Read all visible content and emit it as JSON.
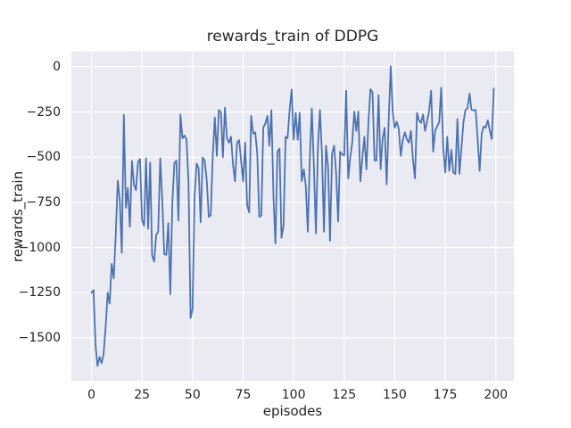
{
  "chart_data": {
    "type": "line",
    "title": "rewards_train of DDPG",
    "xlabel": "episodes",
    "ylabel": "rewards_train",
    "x_ticks": [
      0,
      25,
      50,
      75,
      100,
      125,
      150,
      175,
      200
    ],
    "y_ticks": [
      0,
      -250,
      -500,
      -750,
      -1000,
      -1250,
      -1500
    ],
    "xlim": [
      -9.95,
      208.95
    ],
    "ylim": [
      -1738,
      86
    ],
    "grid": true,
    "legend": false,
    "line_color": "#4c72b0",
    "plot_bg": "#eaeaf2",
    "grid_color": "#ffffff",
    "text_color": "#262626",
    "series": [
      {
        "name": "rewards_train",
        "x_start": 0,
        "x_step": 1,
        "values": [
          -1250,
          -1235,
          -1540,
          -1655,
          -1605,
          -1640,
          -1590,
          -1440,
          -1250,
          -1310,
          -1090,
          -1170,
          -930,
          -630,
          -740,
          -1030,
          -265,
          -780,
          -670,
          -885,
          -520,
          -650,
          -682,
          -526,
          -510,
          -847,
          -880,
          -505,
          -896,
          -530,
          -1044,
          -1077,
          -929,
          -913,
          -505,
          -740,
          -1036,
          -1040,
          -865,
          -1258,
          -750,
          -534,
          -518,
          -850,
          -263,
          -395,
          -380,
          -400,
          -640,
          -1390,
          -1340,
          -715,
          -535,
          -560,
          -860,
          -502,
          -518,
          -625,
          -830,
          -820,
          -490,
          -280,
          -493,
          -238,
          -252,
          -500,
          -225,
          -395,
          -420,
          -387,
          -543,
          -633,
          -419,
          -405,
          -518,
          -633,
          -419,
          -765,
          -806,
          -271,
          -370,
          -362,
          -477,
          -830,
          -822,
          -337,
          -312,
          -271,
          -436,
          -240,
          -715,
          -978,
          -469,
          -452,
          -946,
          -880,
          -387,
          -395,
          -240,
          -125,
          -403,
          -255,
          -403,
          -255,
          -633,
          -567,
          -655,
          -913,
          -500,
          -230,
          -551,
          -921,
          -450,
          -238,
          -485,
          -913,
          -436,
          -551,
          -962,
          -480,
          -436,
          -584,
          -855,
          -469,
          -485,
          -490,
          -132,
          -617,
          -500,
          -419,
          -247,
          -354,
          -247,
          -633,
          -500,
          -387,
          -567,
          -304,
          -123,
          -140,
          -518,
          -518,
          -156,
          -567,
          -400,
          -337,
          -650,
          -304,
          3,
          -250,
          -337,
          -304,
          -345,
          -493,
          -403,
          -362,
          -400,
          -419,
          -354,
          -510,
          -617,
          -255,
          -296,
          -310,
          -263,
          -354,
          -300,
          -247,
          -132,
          -469,
          -354,
          -330,
          -304,
          -115,
          -450,
          -584,
          -387,
          -576,
          -460,
          -584,
          -592,
          -288,
          -592,
          -450,
          -304,
          -238,
          -230,
          -148,
          -238,
          -240,
          -238,
          -395,
          -576,
          -370,
          -329,
          -337,
          -296,
          -350,
          -400,
          -120
        ]
      }
    ]
  }
}
